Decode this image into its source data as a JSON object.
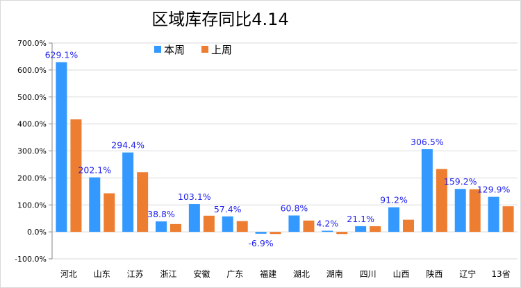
{
  "chart_data": {
    "type": "bar",
    "title": "区域库存同比4.14",
    "xlabel": "",
    "ylabel": "",
    "ylim": [
      -100,
      700
    ],
    "yticks": [
      -100,
      0,
      100,
      200,
      300,
      400,
      500,
      600,
      700
    ],
    "ytick_labels": [
      "-100.0%",
      "0.0%",
      "100.0%",
      "200.0%",
      "300.0%",
      "400.0%",
      "500.0%",
      "600.0%",
      "700.0%"
    ],
    "grid": true,
    "legend_position": "top-center",
    "categories": [
      "河北",
      "山东",
      "江苏",
      "浙江",
      "安徽",
      "广东",
      "福建",
      "湖北",
      "湖南",
      "四川",
      "山西",
      "陕西",
      "辽宁",
      "13省"
    ],
    "series": [
      {
        "name": "本周",
        "color": "#3399ff",
        "values": [
          629.1,
          202.1,
          294.4,
          38.8,
          103.1,
          57.4,
          -6.9,
          60.8,
          4.2,
          21.1,
          91.2,
          306.5,
          159.2,
          129.9
        ],
        "data_labels": [
          "629.1%",
          "202.1%",
          "294.4%",
          "38.8%",
          "103.1%",
          "57.4%",
          "-6.9%",
          "60.8%",
          "4.2%",
          "21.1%",
          "91.2%",
          "306.5%",
          "159.2%",
          "129.9%"
        ]
      },
      {
        "name": "上周",
        "color": "#ed7d31",
        "values": [
          417,
          143,
          221,
          29,
          60,
          40,
          -8,
          42,
          -8,
          21,
          45,
          233,
          158,
          95
        ]
      }
    ],
    "data_label_color": "#2222ee"
  }
}
